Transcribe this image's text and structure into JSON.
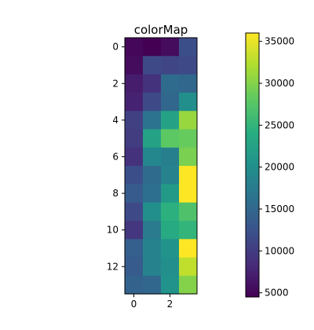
{
  "chart_data": {
    "type": "heatmap",
    "title": "colorMap",
    "xlabel": "",
    "ylabel": "",
    "x_ticks": [
      0,
      2
    ],
    "y_ticks": [
      0,
      2,
      4,
      6,
      8,
      10,
      12
    ],
    "rows": 14,
    "cols": 4,
    "colormap": "viridis",
    "colorbar": {
      "min": 4500,
      "max": 36000,
      "ticks": [
        5000,
        10000,
        15000,
        20000,
        25000,
        30000,
        35000
      ],
      "tick_labels": [
        "5000",
        "10000",
        "15000",
        "20000",
        "25000",
        "30000",
        "35000"
      ]
    },
    "values": [
      [
        5000,
        4500,
        5500,
        12000
      ],
      [
        5500,
        11500,
        11000,
        11500
      ],
      [
        7000,
        9000,
        15500,
        15000
      ],
      [
        7500,
        11500,
        15000,
        20000
      ],
      [
        10500,
        16500,
        22500,
        31000
      ],
      [
        10000,
        22500,
        28000,
        28500
      ],
      [
        9000,
        19000,
        18000,
        29500
      ],
      [
        12000,
        15500,
        18500,
        36000
      ],
      [
        13500,
        16000,
        21500,
        36000
      ],
      [
        11500,
        20000,
        24500,
        27000
      ],
      [
        9500,
        17500,
        23500,
        25000
      ],
      [
        14000,
        18500,
        20500,
        36000
      ],
      [
        13500,
        18500,
        20000,
        33000
      ],
      [
        14500,
        15000,
        20500,
        30000
      ]
    ]
  }
}
